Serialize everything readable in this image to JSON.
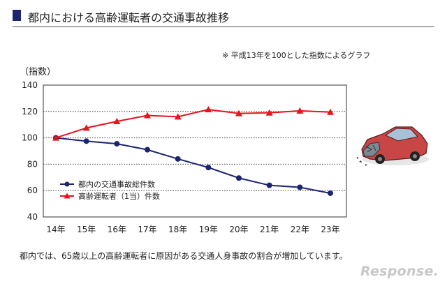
{
  "title": "都内における高齢運転者の交通事故推移",
  "note": "※ 平成13年を100とした指数によるグラフ",
  "caption": "都内では、65歳以上の高齢運転者に原因がある交通人身事故の割合が増加しています。",
  "logo": "Response.",
  "chart_data": {
    "type": "line",
    "ylabel": "（指数）",
    "xlabel": "",
    "ylim": [
      40,
      140
    ],
    "yticks": [
      40,
      60,
      80,
      100,
      120,
      140
    ],
    "grid": true,
    "legend_position": "bottom-left",
    "categories": [
      "14年",
      "15年",
      "16年",
      "17年",
      "18年",
      "19年",
      "20年",
      "21年",
      "22年",
      "23年"
    ],
    "series": [
      {
        "name": "都内の交通事故総件数",
        "color": "#1c2470",
        "marker": "circle",
        "values": [
          100,
          97.5,
          95.5,
          91,
          84,
          77.5,
          69.5,
          64,
          62.5,
          58
        ]
      },
      {
        "name": "高齢運転者（1当）件数",
        "color": "#e8131c",
        "marker": "triangle",
        "values": [
          100,
          107.5,
          112.5,
          117,
          116,
          121.5,
          118.5,
          119,
          120.5,
          119.5
        ]
      }
    ]
  }
}
